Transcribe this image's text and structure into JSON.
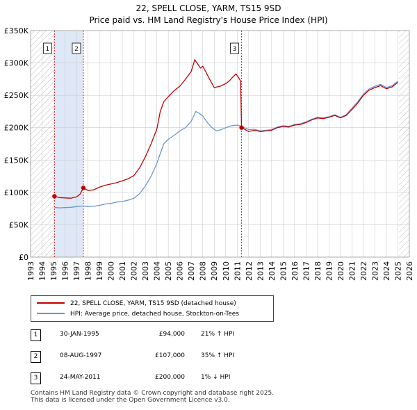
{
  "title": {
    "line1": "22, SPELL CLOSE, YARM, TS15 9SD",
    "line2": "Price paid vs. HM Land Registry's House Price Index (HPI)"
  },
  "colors": {
    "property": "#c00000",
    "hpi": "#6a96d0",
    "shade": "#dfe8f7",
    "grid": "#cccccc"
  },
  "chart_data": {
    "type": "line",
    "title": "Price paid vs. HM Land Registry's House Price Index (HPI)",
    "xlabel": "",
    "ylabel": "",
    "xlim": [
      1993,
      2026
    ],
    "ylim": [
      0,
      350000
    ],
    "grid": true,
    "yticks": [
      0,
      50000,
      100000,
      150000,
      200000,
      250000,
      300000,
      350000
    ],
    "ytick_labels": [
      "£0",
      "£50K",
      "£100K",
      "£150K",
      "£200K",
      "£250K",
      "£300K",
      "£350K"
    ],
    "xticks": [
      1993,
      1994,
      1995,
      1996,
      1997,
      1998,
      1999,
      2000,
      2001,
      2002,
      2003,
      2004,
      2005,
      2006,
      2007,
      2008,
      2009,
      2010,
      2011,
      2012,
      2013,
      2014,
      2015,
      2016,
      2017,
      2018,
      2019,
      2020,
      2021,
      2022,
      2023,
      2024,
      2025,
      2026
    ],
    "xtick_labels": [
      "1993",
      "1994",
      "1995",
      "1996",
      "1997",
      "1998",
      "1999",
      "2000",
      "2001",
      "2002",
      "2003",
      "2004",
      "2005",
      "2006",
      "2007",
      "2008",
      "2009",
      "2010",
      "2011",
      "2012",
      "2013",
      "2014",
      "2015",
      "2016",
      "2017",
      "2018",
      "2019",
      "2020",
      "2021",
      "2022",
      "2023",
      "2024",
      "2025",
      "2026"
    ],
    "hatched_before": 1995.0,
    "hatched_after": 2025.1,
    "shaded_range": [
      1995.08,
      1997.6
    ],
    "series": [
      {
        "name": "22, SPELL CLOSE, YARM, TS15 9SD (detached house)",
        "color": "#c00000",
        "points": [
          [
            1995.08,
            94000
          ],
          [
            1995.5,
            92000
          ],
          [
            1996.0,
            91500
          ],
          [
            1996.5,
            91000
          ],
          [
            1997.0,
            93000
          ],
          [
            1997.3,
            97000
          ],
          [
            1997.6,
            107000
          ],
          [
            1998.0,
            103000
          ],
          [
            1998.5,
            104000
          ],
          [
            1999.0,
            108000
          ],
          [
            1999.5,
            111000
          ],
          [
            2000.0,
            113000
          ],
          [
            2000.5,
            115000
          ],
          [
            2001.0,
            118000
          ],
          [
            2001.5,
            121000
          ],
          [
            2002.0,
            126000
          ],
          [
            2002.5,
            138000
          ],
          [
            2003.0,
            155000
          ],
          [
            2003.5,
            175000
          ],
          [
            2004.0,
            198000
          ],
          [
            2004.3,
            225000
          ],
          [
            2004.6,
            240000
          ],
          [
            2005.0,
            248000
          ],
          [
            2005.5,
            257000
          ],
          [
            2006.0,
            264000
          ],
          [
            2006.5,
            275000
          ],
          [
            2007.0,
            287000
          ],
          [
            2007.3,
            305000
          ],
          [
            2007.5,
            300000
          ],
          [
            2007.8,
            292000
          ],
          [
            2008.0,
            295000
          ],
          [
            2008.3,
            285000
          ],
          [
            2008.6,
            275000
          ],
          [
            2009.0,
            262000
          ],
          [
            2009.5,
            264000
          ],
          [
            2010.0,
            268000
          ],
          [
            2010.3,
            272000
          ],
          [
            2010.6,
            278000
          ],
          [
            2010.9,
            283000
          ],
          [
            2011.1,
            278000
          ],
          [
            2011.3,
            272000
          ],
          [
            2011.38,
            200000
          ],
          [
            2011.6,
            198000
          ],
          [
            2012.0,
            194000
          ],
          [
            2012.5,
            196000
          ],
          [
            2013.0,
            194000
          ],
          [
            2013.5,
            195000
          ],
          [
            2014.0,
            196000
          ],
          [
            2014.5,
            200000
          ],
          [
            2015.0,
            202000
          ],
          [
            2015.5,
            201000
          ],
          [
            2016.0,
            204000
          ],
          [
            2016.5,
            205000
          ],
          [
            2017.0,
            208000
          ],
          [
            2017.5,
            212000
          ],
          [
            2018.0,
            215000
          ],
          [
            2018.5,
            214000
          ],
          [
            2019.0,
            216000
          ],
          [
            2019.5,
            219000
          ],
          [
            2020.0,
            215000
          ],
          [
            2020.5,
            219000
          ],
          [
            2021.0,
            228000
          ],
          [
            2021.5,
            238000
          ],
          [
            2022.0,
            250000
          ],
          [
            2022.5,
            258000
          ],
          [
            2023.0,
            262000
          ],
          [
            2023.5,
            265000
          ],
          [
            2024.0,
            260000
          ],
          [
            2024.5,
            263000
          ],
          [
            2025.0,
            270000
          ]
        ]
      },
      {
        "name": "HPI: Average price, detached house, Stockton-on-Tees",
        "color": "#6a96d0",
        "points": [
          [
            1995.08,
            77000
          ],
          [
            1995.5,
            76000
          ],
          [
            1996.0,
            76500
          ],
          [
            1996.5,
            77000
          ],
          [
            1997.0,
            78000
          ],
          [
            1997.6,
            79000
          ],
          [
            1998.0,
            78000
          ],
          [
            1998.5,
            78500
          ],
          [
            1999.0,
            80000
          ],
          [
            1999.5,
            82000
          ],
          [
            2000.0,
            83000
          ],
          [
            2000.5,
            85000
          ],
          [
            2001.0,
            86000
          ],
          [
            2001.5,
            88000
          ],
          [
            2002.0,
            91000
          ],
          [
            2002.5,
            98000
          ],
          [
            2003.0,
            110000
          ],
          [
            2003.5,
            125000
          ],
          [
            2004.0,
            145000
          ],
          [
            2004.3,
            160000
          ],
          [
            2004.6,
            175000
          ],
          [
            2005.0,
            182000
          ],
          [
            2005.5,
            188000
          ],
          [
            2006.0,
            195000
          ],
          [
            2006.5,
            200000
          ],
          [
            2007.0,
            210000
          ],
          [
            2007.4,
            225000
          ],
          [
            2007.7,
            222000
          ],
          [
            2008.0,
            218000
          ],
          [
            2008.4,
            208000
          ],
          [
            2008.8,
            200000
          ],
          [
            2009.2,
            195000
          ],
          [
            2009.6,
            197000
          ],
          [
            2010.0,
            200000
          ],
          [
            2010.5,
            203000
          ],
          [
            2011.0,
            204000
          ],
          [
            2011.38,
            202000
          ],
          [
            2012.0,
            197000
          ],
          [
            2012.5,
            197500
          ],
          [
            2013.0,
            195000
          ],
          [
            2013.5,
            196000
          ],
          [
            2014.0,
            197000
          ],
          [
            2014.5,
            201000
          ],
          [
            2015.0,
            203000
          ],
          [
            2015.5,
            202000
          ],
          [
            2016.0,
            205000
          ],
          [
            2016.5,
            206000
          ],
          [
            2017.0,
            209000
          ],
          [
            2017.5,
            213000
          ],
          [
            2018.0,
            216000
          ],
          [
            2018.5,
            215000
          ],
          [
            2019.0,
            217000
          ],
          [
            2019.5,
            220000
          ],
          [
            2020.0,
            216000
          ],
          [
            2020.5,
            220000
          ],
          [
            2021.0,
            230000
          ],
          [
            2021.5,
            240000
          ],
          [
            2022.0,
            252000
          ],
          [
            2022.5,
            260000
          ],
          [
            2023.0,
            264000
          ],
          [
            2023.5,
            267000
          ],
          [
            2024.0,
            262000
          ],
          [
            2024.5,
            265000
          ],
          [
            2025.0,
            272000
          ]
        ]
      }
    ],
    "markers": [
      {
        "label": "1",
        "x": 1995.08,
        "y": 94000
      },
      {
        "label": "2",
        "x": 1997.6,
        "y": 107000
      },
      {
        "label": "3",
        "x": 2011.38,
        "y": 200000
      }
    ]
  },
  "legend": {
    "property_label": "22, SPELL CLOSE, YARM, TS15 9SD (detached house)",
    "hpi_label": "HPI: Average price, detached house, Stockton-on-Tees"
  },
  "transactions": [
    {
      "num": "1",
      "date": "30-JAN-1995",
      "price": "£94,000",
      "hpi": "21% ↑ HPI"
    },
    {
      "num": "2",
      "date": "08-AUG-1997",
      "price": "£107,000",
      "hpi": "35% ↑ HPI"
    },
    {
      "num": "3",
      "date": "24-MAY-2011",
      "price": "£200,000",
      "hpi": "1% ↓ HPI"
    }
  ],
  "footer": {
    "line1": "Contains HM Land Registry data © Crown copyright and database right 2025.",
    "line2": "This data is licensed under the Open Government Licence v3.0."
  }
}
